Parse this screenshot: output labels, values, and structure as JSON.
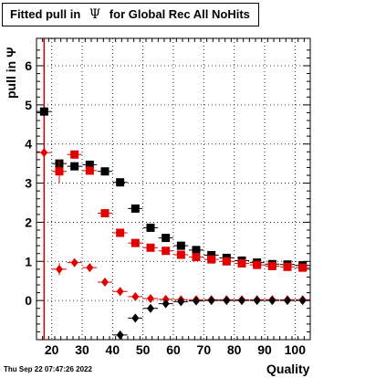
{
  "title": {
    "prefix": "Fitted pull in",
    "symbol": "Ψ",
    "suffix": "for Global Rec All NoHits"
  },
  "footer": "Thu Sep 22 07:47:26 2022",
  "chart_data": {
    "type": "scatter",
    "title": "Fitted pull in Ψ for Global Rec All NoHits",
    "xlabel": "Quality",
    "ylabel": "pull in Ψ",
    "xlim": [
      15,
      105
    ],
    "ylim": [
      -1,
      6.7
    ],
    "xticks": [
      20,
      30,
      40,
      50,
      60,
      70,
      80,
      90,
      100
    ],
    "yticks": [
      0,
      1,
      2,
      3,
      4,
      5,
      6
    ],
    "grid": true,
    "reference_line_x": 17.5,
    "series": [
      {
        "marker": "square",
        "color": "#000000",
        "x": [
          17.5,
          22.5,
          27.5,
          32.5,
          37.5,
          42.5,
          47.5,
          52.5,
          57.5,
          62.5,
          67.5,
          72.5,
          77.5,
          82.5,
          87.5,
          92.5,
          97.5,
          102.5
        ],
        "y": [
          4.83,
          3.5,
          3.43,
          3.47,
          3.3,
          3.02,
          2.35,
          1.86,
          1.6,
          1.4,
          1.29,
          1.16,
          1.09,
          1.02,
          0.97,
          0.93,
          0.92,
          0.9
        ],
        "err": [
          0,
          0,
          0,
          0,
          0,
          0,
          0,
          0,
          0,
          0,
          0,
          0,
          0,
          0,
          0,
          0,
          0,
          0
        ]
      },
      {
        "marker": "square",
        "color": "#e00000",
        "x": [
          22.5,
          27.5,
          32.5,
          37.5,
          42.5,
          47.5,
          52.5,
          57.5,
          62.5,
          67.5,
          72.5,
          77.5,
          82.5,
          87.5,
          92.5,
          97.5,
          102.5
        ],
        "y": [
          3.3,
          3.73,
          3.32,
          2.23,
          1.73,
          1.47,
          1.35,
          1.27,
          1.17,
          1.11,
          1.05,
          1.0,
          0.95,
          0.91,
          0.88,
          0.86,
          0.84
        ],
        "err": [
          0.3,
          0,
          0,
          0,
          0,
          0,
          0,
          0,
          0,
          0,
          0,
          0,
          0,
          0,
          0,
          0,
          0
        ]
      },
      {
        "marker": "diamond",
        "color": "#e00000",
        "x": [
          17.5,
          22.5,
          27.5,
          32.5,
          37.5,
          42.5,
          47.5,
          52.5,
          57.5,
          62.5,
          67.5,
          72.5,
          77.5,
          82.5,
          87.5,
          92.5,
          97.5,
          102.5
        ],
        "y": [
          3.78,
          0.8,
          0.97,
          0.84,
          0.47,
          0.23,
          0.1,
          0.05,
          0.03,
          0.02,
          0.02,
          0.02,
          0.02,
          0.02,
          0.02,
          0.02,
          0.02,
          0.02
        ],
        "err": [
          0,
          0.15,
          0,
          0,
          0,
          0,
          0,
          0,
          0,
          0,
          0,
          0,
          0,
          0,
          0,
          0,
          0,
          0
        ]
      },
      {
        "marker": "diamond",
        "color": "#000000",
        "x": [
          42.5,
          47.5,
          52.5,
          57.5,
          62.5,
          67.5,
          72.5,
          77.5,
          82.5,
          87.5,
          92.5,
          97.5,
          102.5
        ],
        "y": [
          -0.88,
          -0.45,
          -0.2,
          -0.08,
          -0.03,
          -0.01,
          0.0,
          0.0,
          0.0,
          0.0,
          0.0,
          0.0,
          0.0
        ],
        "err": [
          0,
          0,
          0,
          0,
          0,
          0,
          0,
          0,
          0,
          0,
          0,
          0,
          0
        ]
      }
    ]
  }
}
